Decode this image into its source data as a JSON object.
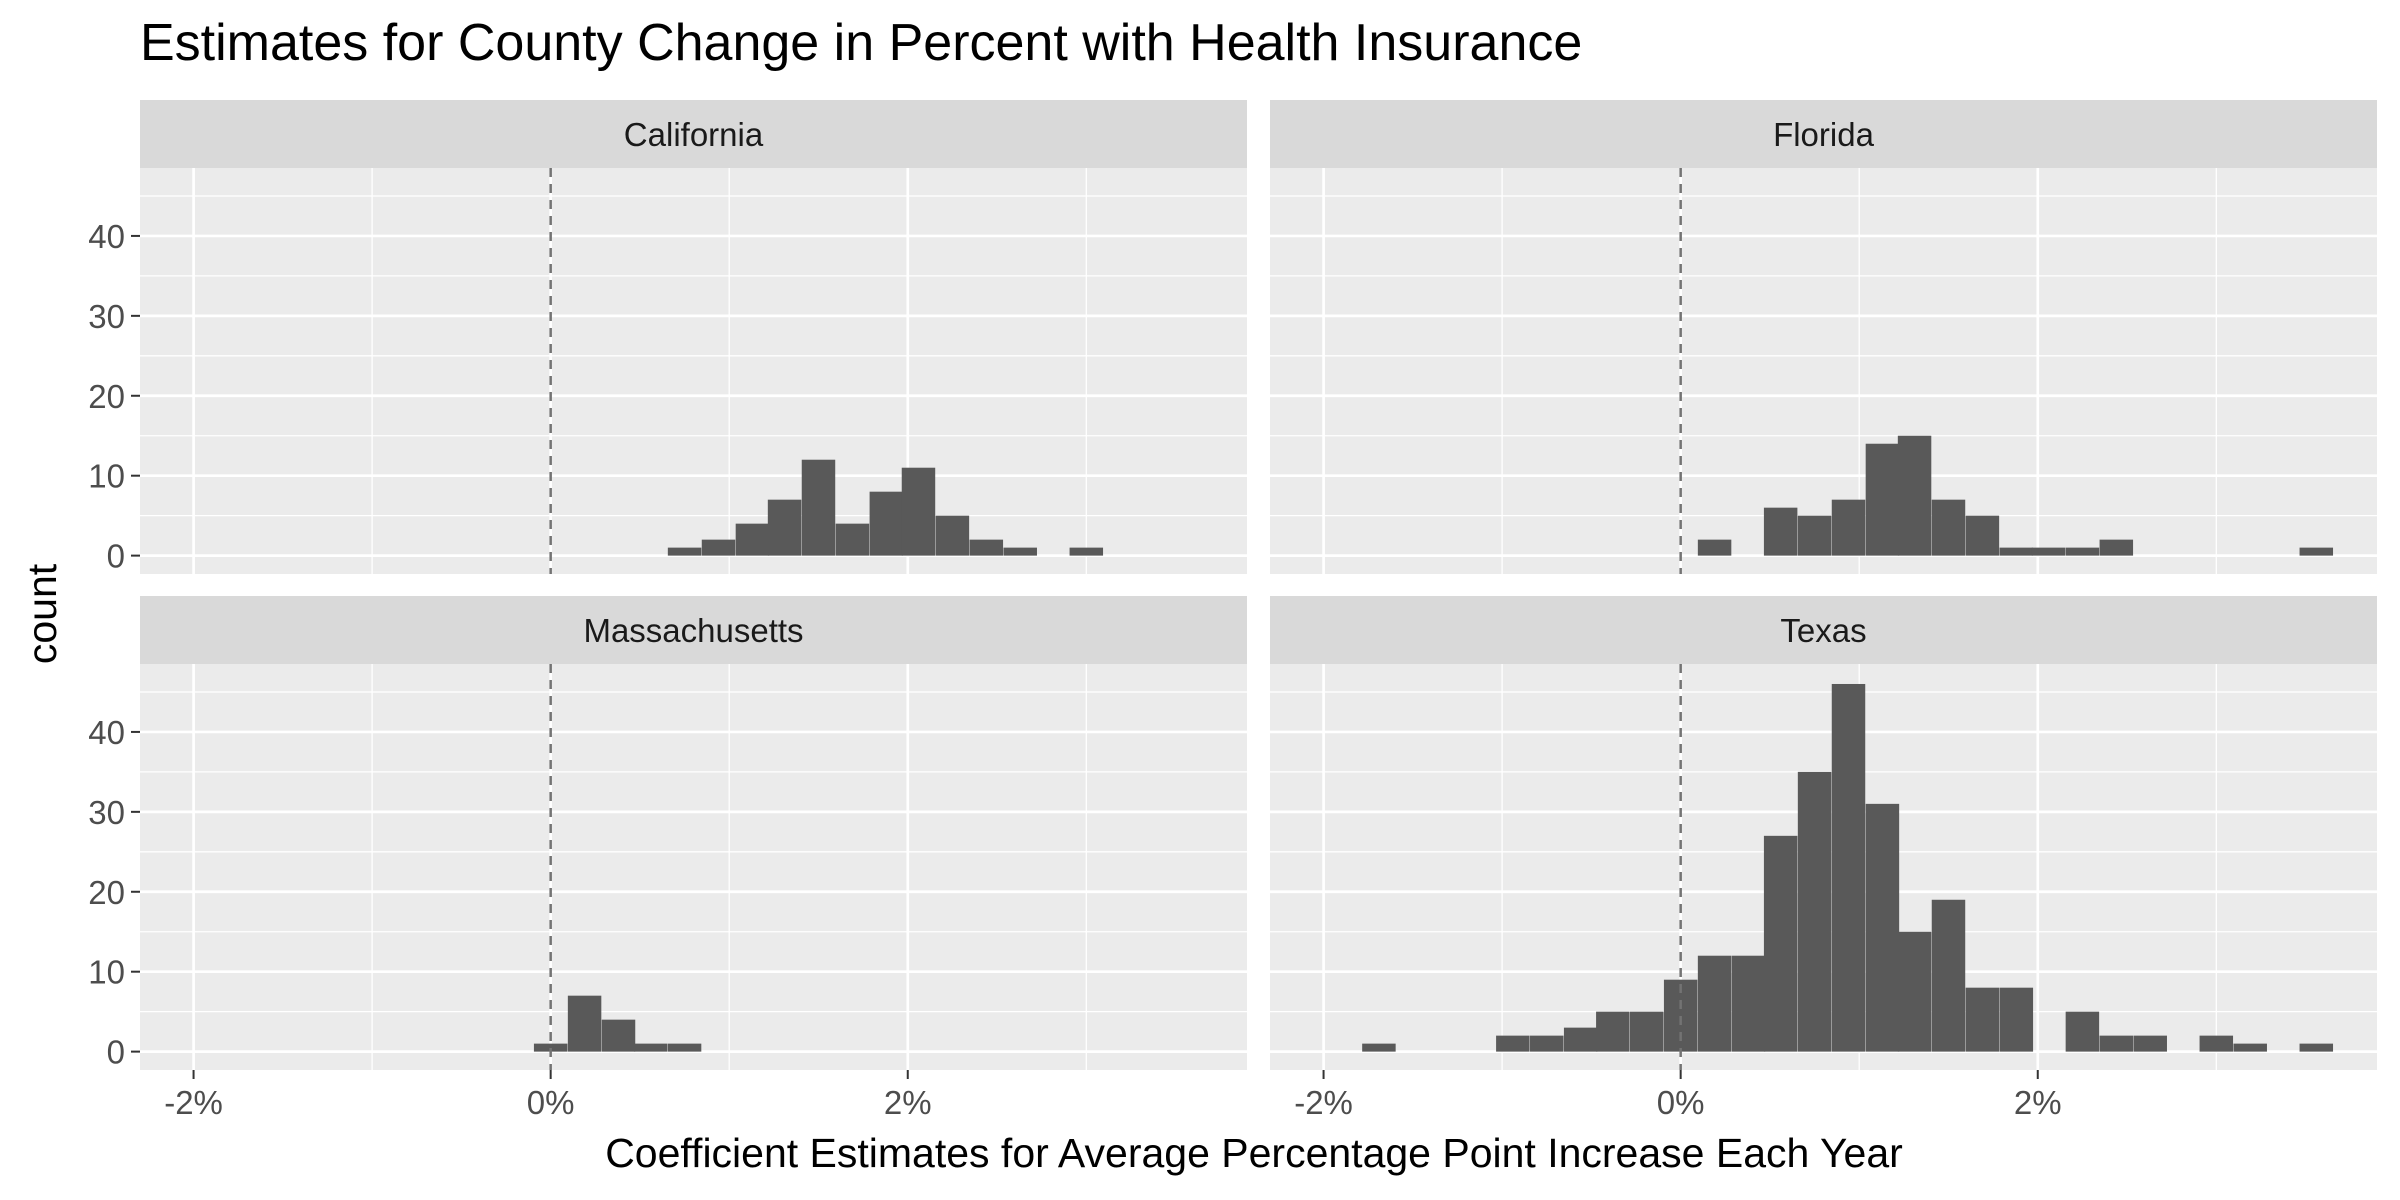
{
  "chart_data": {
    "type": "bar",
    "title": "Estimates for County Change in Percent with Health Insurance",
    "xlabel": "Coefficient Estimates for Average Percentage Point Increase Each Year",
    "ylabel": "count",
    "x_ticks": [
      "-2%",
      "0%",
      "2%"
    ],
    "y_ticks": [
      "0",
      "10",
      "20",
      "30",
      "40"
    ],
    "xlim": [
      -2.3,
      3.9
    ],
    "ylim": [
      -2.3,
      48.5
    ],
    "bin_width": 0.1875,
    "reference_line_x": 0,
    "grid": true,
    "facets": [
      {
        "label": "California",
        "bins": [
          {
            "x": 0.75,
            "count": 1
          },
          {
            "x": 0.94,
            "count": 2
          },
          {
            "x": 1.13,
            "count": 4
          },
          {
            "x": 1.31,
            "count": 7
          },
          {
            "x": 1.5,
            "count": 12
          },
          {
            "x": 1.69,
            "count": 4
          },
          {
            "x": 1.88,
            "count": 8
          },
          {
            "x": 2.06,
            "count": 11
          },
          {
            "x": 2.25,
            "count": 5
          },
          {
            "x": 2.44,
            "count": 2
          },
          {
            "x": 2.63,
            "count": 1
          },
          {
            "x": 3.0,
            "count": 1
          }
        ]
      },
      {
        "label": "Florida",
        "bins": [
          {
            "x": 0.19,
            "count": 2
          },
          {
            "x": 0.56,
            "count": 6
          },
          {
            "x": 0.75,
            "count": 5
          },
          {
            "x": 0.94,
            "count": 7
          },
          {
            "x": 1.13,
            "count": 14
          },
          {
            "x": 1.31,
            "count": 15
          },
          {
            "x": 1.5,
            "count": 7
          },
          {
            "x": 1.69,
            "count": 5
          },
          {
            "x": 1.88,
            "count": 1
          },
          {
            "x": 2.06,
            "count": 1
          },
          {
            "x": 2.25,
            "count": 1
          },
          {
            "x": 2.44,
            "count": 2
          },
          {
            "x": 3.56,
            "count": 1
          }
        ]
      },
      {
        "label": "Massachusetts",
        "bins": [
          {
            "x": 0.0,
            "count": 1
          },
          {
            "x": 0.19,
            "count": 7
          },
          {
            "x": 0.38,
            "count": 4
          },
          {
            "x": 0.56,
            "count": 1
          },
          {
            "x": 0.75,
            "count": 1
          }
        ]
      },
      {
        "label": "Texas",
        "bins": [
          {
            "x": -1.69,
            "count": 1
          },
          {
            "x": -0.94,
            "count": 2
          },
          {
            "x": -0.75,
            "count": 2
          },
          {
            "x": -0.56,
            "count": 3
          },
          {
            "x": -0.38,
            "count": 5
          },
          {
            "x": -0.19,
            "count": 5
          },
          {
            "x": 0.0,
            "count": 9
          },
          {
            "x": 0.19,
            "count": 12
          },
          {
            "x": 0.38,
            "count": 12
          },
          {
            "x": 0.56,
            "count": 27
          },
          {
            "x": 0.75,
            "count": 35
          },
          {
            "x": 0.94,
            "count": 46
          },
          {
            "x": 1.13,
            "count": 31
          },
          {
            "x": 1.31,
            "count": 15
          },
          {
            "x": 1.5,
            "count": 19
          },
          {
            "x": 1.69,
            "count": 8
          },
          {
            "x": 1.88,
            "count": 8
          },
          {
            "x": 2.25,
            "count": 5
          },
          {
            "x": 2.44,
            "count": 2
          },
          {
            "x": 2.63,
            "count": 2
          },
          {
            "x": 3.0,
            "count": 2
          },
          {
            "x": 3.19,
            "count": 1
          },
          {
            "x": 3.56,
            "count": 1
          }
        ]
      }
    ],
    "colors": {
      "bar": "#595959",
      "panel_background": "#ebebeb",
      "strip_background": "#d9d9d9",
      "grid": "#ffffff",
      "reference_line": "#737373"
    }
  }
}
